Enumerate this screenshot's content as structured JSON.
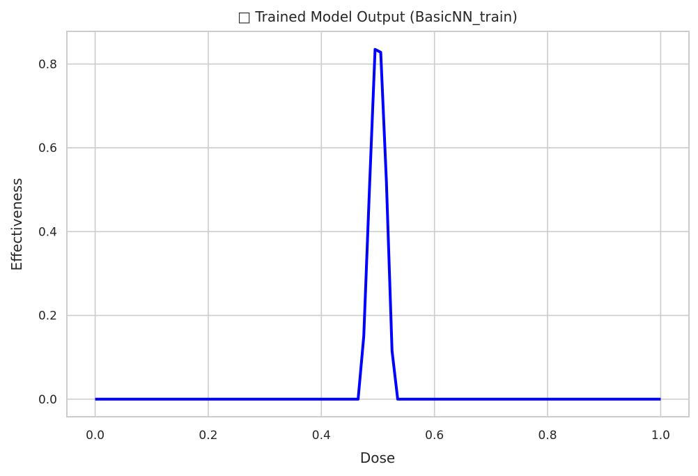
{
  "chart_data": {
    "type": "line",
    "title": "□ Trained Model Output (BasicNN_train)",
    "xlabel": "Dose",
    "ylabel": "Effectiveness",
    "xlim": [
      -0.05,
      1.05
    ],
    "ylim": [
      -0.042,
      0.878
    ],
    "xticks": [
      0.0,
      0.2,
      0.4,
      0.6,
      0.8,
      1.0
    ],
    "xtick_labels": [
      "0.0",
      "0.2",
      "0.4",
      "0.6",
      "0.8",
      "1.0"
    ],
    "yticks": [
      0.0,
      0.2,
      0.4,
      0.6,
      0.8
    ],
    "ytick_labels": [
      "0.0",
      "0.2",
      "0.4",
      "0.6",
      "0.8"
    ],
    "grid": true,
    "line_color": "#0000ff",
    "series": [
      {
        "x": [
          0.0,
          0.465,
          0.475,
          0.485,
          0.495,
          0.505,
          0.515,
          0.525,
          0.535,
          1.0
        ],
        "y": [
          0.0,
          0.0,
          0.15,
          0.5,
          0.835,
          0.828,
          0.52,
          0.115,
          0.0,
          0.0
        ]
      }
    ]
  }
}
